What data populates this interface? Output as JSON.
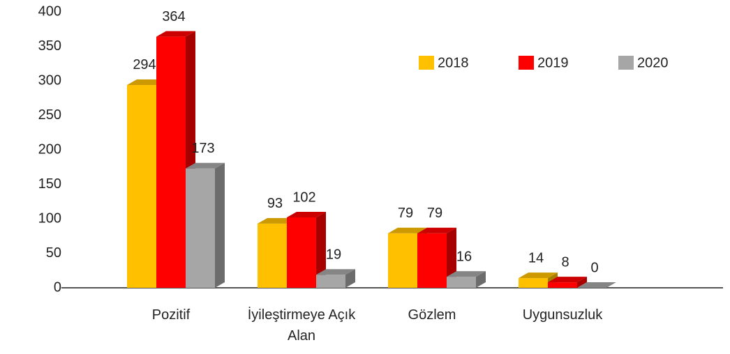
{
  "chart_data": {
    "type": "bar3d",
    "categories": [
      "Pozitif",
      "İyileştirmeye Açık Alan",
      "Gözlem",
      "Uygunsuzluk"
    ],
    "series": [
      {
        "name": "2018",
        "color": "#ffc000",
        "values": [
          294,
          93,
          79,
          14
        ]
      },
      {
        "name": "2019",
        "color": "#ff0000",
        "values": [
          364,
          102,
          79,
          8
        ]
      },
      {
        "name": "2020",
        "color": "#a6a6a6",
        "values": [
          173,
          19,
          16,
          0
        ]
      }
    ],
    "ylim": [
      0,
      400
    ],
    "yticks": [
      0,
      50,
      100,
      150,
      200,
      250,
      300,
      350,
      400
    ],
    "grid": false,
    "legend": "top-right"
  }
}
